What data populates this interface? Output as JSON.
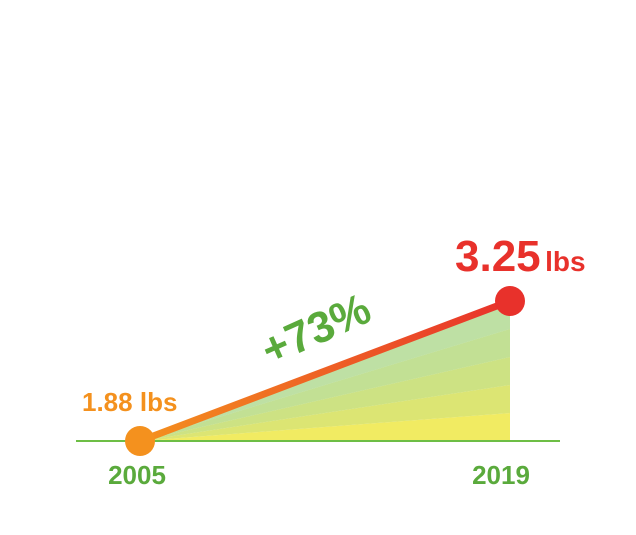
{
  "chart_data": {
    "type": "line",
    "x": [
      "2005",
      "2019"
    ],
    "values": [
      1.88,
      3.25
    ],
    "start_label": {
      "value": "1.88",
      "unit": "lbs"
    },
    "end_label": {
      "value": "3.25",
      "unit": "lbs"
    },
    "change_label": "+73%",
    "ylim": [
      0,
      3.25
    ],
    "grid": false,
    "legend": "none"
  },
  "colors": {
    "start": "#f4911e",
    "end": "#e8312b",
    "axis": "#6dbe45",
    "year_text": "#5aaa3c",
    "change_text": "#5aaa3c",
    "fill_light": "#f0ea5a",
    "fill_dark": "#7cc25a"
  }
}
